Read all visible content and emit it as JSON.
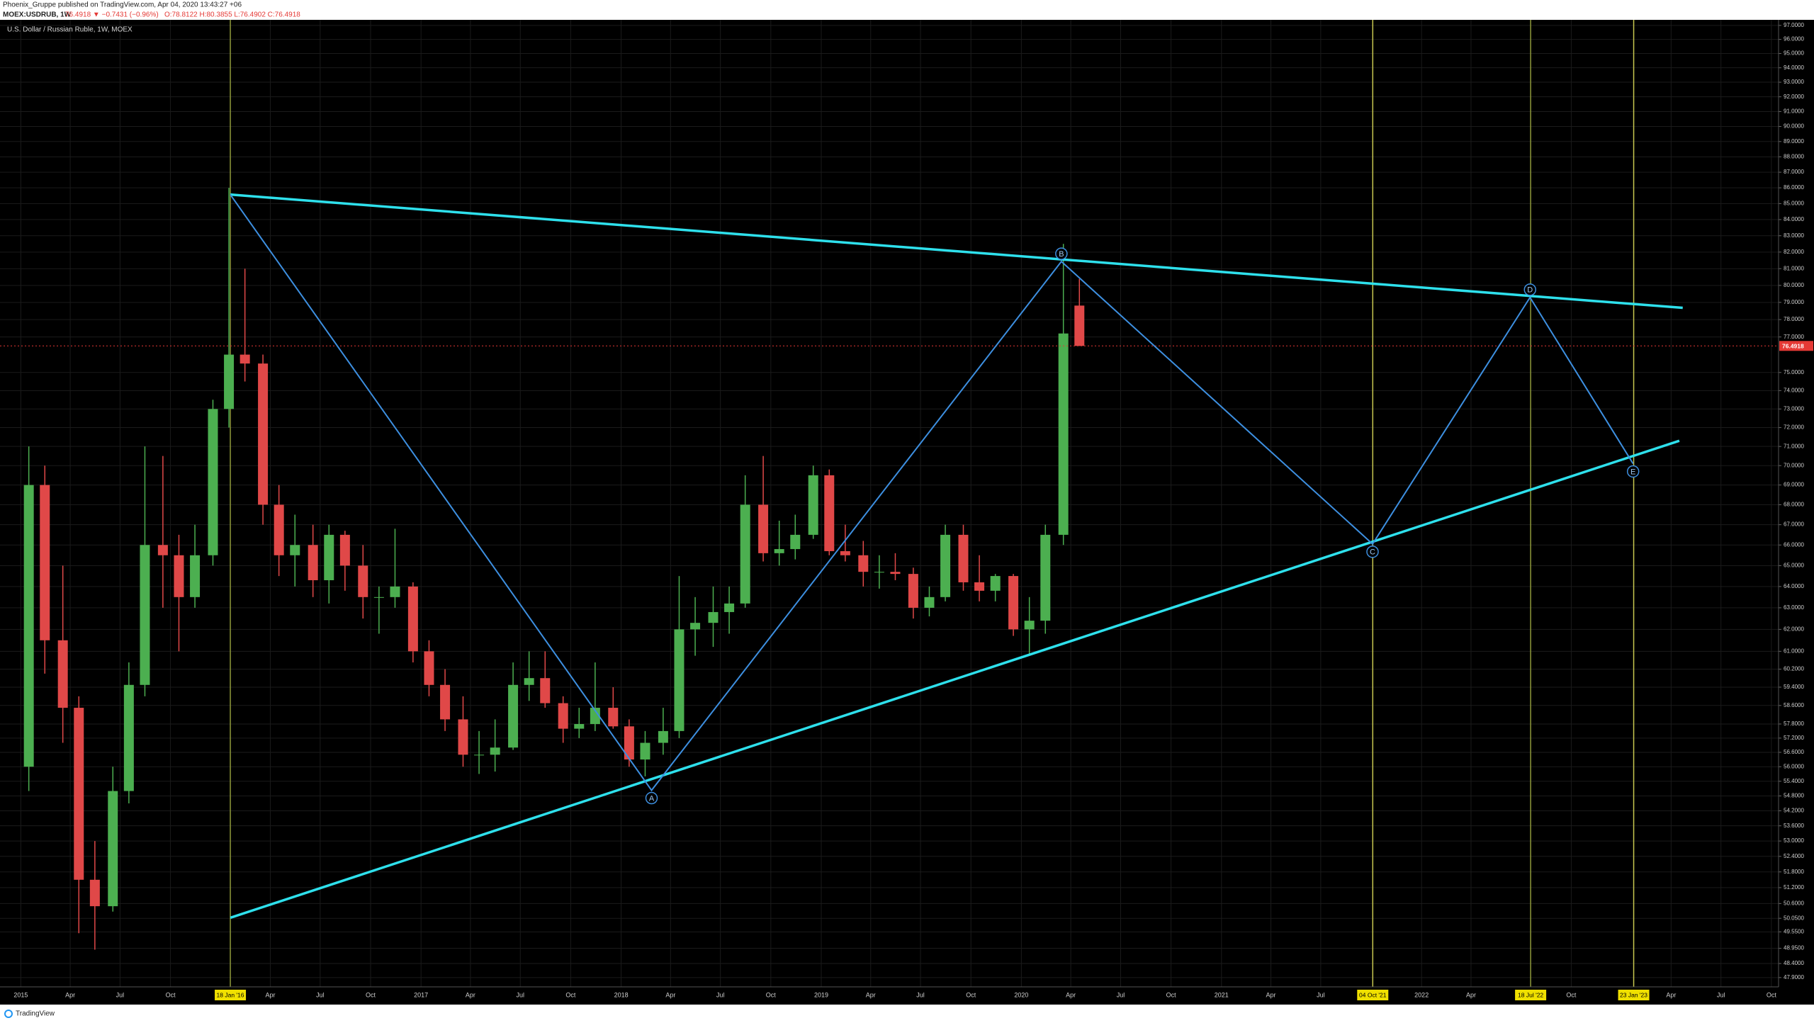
{
  "header": {
    "published": "Phoenix_Gruppe published on TradingView.com, Apr 04, 2020 13:43:27 +06",
    "symbol": "MOEX:USDRUB, 1W",
    "change": "76.4918 ▼ −0.7431 (−0.96%)",
    "ohlc": "O:78.8122 H:80.3855 L:76.4902 C:76.4918"
  },
  "footer": {
    "brand": "TradingView"
  },
  "chart_data": {
    "type": "candlestick",
    "title": "U.S. Dollar / Russian Ruble, 1W, MOEX",
    "log_scale": true,
    "grid": true,
    "up_color": "#4caf50",
    "down_color": "#e04848",
    "xlim": [
      2014.896,
      2023.784
    ],
    "ylim": [
      47.57,
      97.4
    ],
    "xticks": [
      2015,
      {
        "value": 2015.247,
        "label": "Apr"
      },
      {
        "value": 2015.496,
        "label": "Jul"
      },
      {
        "value": 2015.748,
        "label": "Oct"
      },
      {
        "value": 2016.247,
        "label": "Apr"
      },
      {
        "value": 2016.496,
        "label": "Jul"
      },
      {
        "value": 2016.748,
        "label": "Oct"
      },
      2017,
      {
        "value": 2017.247,
        "label": "Apr"
      },
      {
        "value": 2017.496,
        "label": "Jul"
      },
      {
        "value": 2017.748,
        "label": "Oct"
      },
      2018,
      {
        "value": 2018.247,
        "label": "Apr"
      },
      {
        "value": 2018.496,
        "label": "Jul"
      },
      {
        "value": 2018.748,
        "label": "Oct"
      },
      2019,
      {
        "value": 2019.247,
        "label": "Apr"
      },
      {
        "value": 2019.496,
        "label": "Jul"
      },
      {
        "value": 2019.748,
        "label": "Oct"
      },
      2020,
      {
        "value": 2020.247,
        "label": "Apr"
      },
      {
        "value": 2020.496,
        "label": "Jul"
      },
      {
        "value": 2020.748,
        "label": "Oct"
      },
      2021,
      {
        "value": 2021.247,
        "label": "Apr"
      },
      {
        "value": 2021.496,
        "label": "Jul"
      },
      2022,
      {
        "value": 2022.247,
        "label": "Apr"
      },
      {
        "value": 2022.748,
        "label": "Oct"
      },
      {
        "value": 2023.247,
        "label": "Apr"
      },
      {
        "value": 2023.496,
        "label": "Jul"
      },
      {
        "value": 2023.748,
        "label": "Oct"
      }
    ],
    "yticks": [
      {
        "value": 97,
        "label": "97.0000"
      },
      {
        "value": 96,
        "label": "96.0000"
      },
      {
        "value": 95,
        "label": "95.0000"
      },
      {
        "value": 94,
        "label": "94.0000"
      },
      {
        "value": 93,
        "label": "93.0000"
      },
      {
        "value": 92,
        "label": "92.0000"
      },
      {
        "value": 91,
        "label": "91.0000"
      },
      {
        "value": 90,
        "label": "90.0000"
      },
      {
        "value": 89,
        "label": "89.0000"
      },
      {
        "value": 88,
        "label": "88.0000"
      },
      {
        "value": 87,
        "label": "87.0000"
      },
      {
        "value": 86,
        "label": "86.0000"
      },
      {
        "value": 85,
        "label": "85.0000"
      },
      {
        "value": 84,
        "label": "84.0000"
      },
      {
        "value": 83,
        "label": "83.0000"
      },
      {
        "value": 82,
        "label": "82.0000"
      },
      {
        "value": 81,
        "label": "81.0000"
      },
      {
        "value": 80,
        "label": "80.0000"
      },
      {
        "value": 79,
        "label": "79.0000"
      },
      {
        "value": 78,
        "label": "78.0000"
      },
      {
        "value": 77,
        "label": "77.0000"
      },
      {
        "value": 75,
        "label": "75.0000"
      },
      {
        "value": 74,
        "label": "74.0000"
      },
      {
        "value": 73,
        "label": "73.0000"
      },
      {
        "value": 72,
        "label": "72.0000"
      },
      {
        "value": 71,
        "label": "71.0000"
      },
      {
        "value": 70,
        "label": "70.0000"
      },
      {
        "value": 69,
        "label": "69.0000"
      },
      {
        "value": 68,
        "label": "68.0000"
      },
      {
        "value": 67,
        "label": "67.0000"
      },
      {
        "value": 66,
        "label": "66.0000"
      },
      {
        "value": 65,
        "label": "65.0000"
      },
      {
        "value": 64,
        "label": "64.0000"
      },
      {
        "value": 63,
        "label": "63.0000"
      },
      {
        "value": 62,
        "label": "62.0000"
      },
      {
        "value": 61,
        "label": "61.0000"
      },
      {
        "value": 60.2,
        "label": "60.2000"
      },
      {
        "value": 59.4,
        "label": "59.4000"
      },
      {
        "value": 58.6,
        "label": "58.6000"
      },
      {
        "value": 57.8,
        "label": "57.8000"
      },
      {
        "value": 57.2,
        "label": "57.2000"
      },
      {
        "value": 56.6,
        "label": "56.6000"
      },
      {
        "value": 56,
        "label": "56.0000"
      },
      {
        "value": 55.4,
        "label": "55.4000"
      },
      {
        "value": 54.8,
        "label": "54.8000"
      },
      {
        "value": 54.2,
        "label": "54.2000"
      },
      {
        "value": 53.6,
        "label": "53.6000"
      },
      {
        "value": 53,
        "label": "53.0000"
      },
      {
        "value": 52.4,
        "label": "52.4000"
      },
      {
        "value": 51.8,
        "label": "51.8000"
      },
      {
        "value": 51.2,
        "label": "51.2000"
      },
      {
        "value": 50.6,
        "label": "50.6000"
      },
      {
        "value": 50.05,
        "label": "50.0500"
      },
      {
        "value": 49.55,
        "label": "49.5500"
      },
      {
        "value": 48.95,
        "label": "48.9500"
      },
      {
        "value": 48.4,
        "label": "48.4000"
      },
      {
        "value": 47.9,
        "label": "47.9000"
      }
    ],
    "candles": {
      "x": [
        2015.04,
        2015.12,
        2015.21,
        2015.29,
        2015.37,
        2015.46,
        2015.54,
        2015.62,
        2015.71,
        2015.79,
        2015.87,
        2015.96,
        2016.04,
        2016.12,
        2016.21,
        2016.29,
        2016.37,
        2016.46,
        2016.54,
        2016.62,
        2016.71,
        2016.79,
        2016.87,
        2016.96,
        2017.04,
        2017.12,
        2017.21,
        2017.29,
        2017.37,
        2017.46,
        2017.54,
        2017.62,
        2017.71,
        2017.79,
        2017.87,
        2017.96,
        2018.04,
        2018.12,
        2018.21,
        2018.29,
        2018.37,
        2018.46,
        2018.54,
        2018.62,
        2018.71,
        2018.79,
        2018.87,
        2018.96,
        2019.04,
        2019.12,
        2019.21,
        2019.29,
        2019.37,
        2019.46,
        2019.54,
        2019.62,
        2019.71,
        2019.79,
        2019.87,
        2019.96,
        2020.04,
        2020.12,
        2020.21,
        2020.29
      ],
      "open": [
        56,
        69,
        61.5,
        58.5,
        51.5,
        50.5,
        55,
        59.5,
        66,
        65.5,
        63.5,
        65.5,
        73,
        76,
        75.5,
        68,
        65.5,
        66,
        64.3,
        66.5,
        65,
        63.5,
        63.5,
        64,
        61,
        59.5,
        58,
        56.5,
        56.5,
        56.8,
        59.5,
        59.8,
        58.7,
        57.6,
        57.8,
        58.5,
        57.7,
        56.3,
        57,
        57.5,
        62,
        62.3,
        62.8,
        63.2,
        68,
        65.6,
        65.8,
        66.5,
        69.5,
        65.7,
        65.5,
        64.7,
        64.7,
        64.6,
        63,
        63.5,
        66.5,
        64.2,
        63.8,
        64.5,
        62,
        62.4,
        66.5,
        78.8122
      ],
      "high": [
        71,
        70,
        65,
        59,
        53,
        56,
        60.5,
        71,
        70.5,
        66.5,
        67,
        73.5,
        86,
        81,
        76,
        69,
        67.5,
        67,
        67,
        66.7,
        66,
        64,
        66.8,
        64.2,
        61.5,
        60.2,
        59,
        57.5,
        58,
        60.5,
        61,
        61,
        59,
        58.5,
        60.5,
        59.4,
        58,
        57.5,
        58.5,
        64.5,
        63.5,
        64,
        64,
        69.5,
        70.5,
        67.2,
        67.5,
        70,
        69.8,
        67,
        66.2,
        65.5,
        65.6,
        64.9,
        64,
        67,
        67,
        65.5,
        64.6,
        64.6,
        63.5,
        67,
        82.5,
        80.3855
      ],
      "low": [
        55,
        60,
        57,
        49.5,
        48.9,
        50.3,
        54.5,
        59,
        63,
        61,
        63,
        65,
        72,
        74.5,
        67,
        64.5,
        64,
        63.5,
        63.2,
        63.8,
        62.5,
        61.8,
        63,
        60.5,
        59,
        57.5,
        56,
        55.7,
        55.8,
        56.7,
        58.8,
        58.5,
        57,
        57.2,
        57.5,
        57.6,
        56,
        55.6,
        56.5,
        57.2,
        60.8,
        61.2,
        61.8,
        63,
        65.2,
        65,
        65.3,
        66.3,
        65.5,
        65.2,
        64,
        63.9,
        64.3,
        62.5,
        62.6,
        63.3,
        63.8,
        63.3,
        63.3,
        61.7,
        60.9,
        61.8,
        66,
        76.4902
      ],
      "close": [
        69,
        61.5,
        58.5,
        51.5,
        50.5,
        55,
        59.5,
        66,
        65.5,
        63.5,
        65.5,
        73,
        76,
        75.5,
        68,
        65.5,
        66,
        64.3,
        66.5,
        65,
        63.5,
        63.5,
        64,
        61,
        59.5,
        58,
        56.5,
        56.5,
        56.8,
        59.5,
        59.8,
        58.7,
        57.6,
        57.8,
        58.5,
        57.7,
        56.3,
        57,
        57.5,
        62,
        62.3,
        62.8,
        63.2,
        68,
        65.6,
        65.8,
        66.5,
        69.5,
        65.7,
        65.5,
        64.7,
        64.7,
        64.6,
        63,
        63.5,
        66.5,
        64.2,
        63.8,
        64.5,
        62,
        62.4,
        66.5,
        77.2,
        76.4918
      ]
    },
    "last_price": {
      "value": 76.4918,
      "label": "76.4918",
      "color": "#e53935"
    },
    "trendlines": [
      {
        "x": [
          2016.047,
          2023.305
        ],
        "y": [
          85.57,
          78.68
        ],
        "color": "#2ee0ec"
      },
      {
        "x": [
          2016.047,
          2023.288
        ],
        "y": [
          50.07,
          71.3
        ],
        "color": "#2ee0ec"
      }
    ],
    "zigzag": {
      "x": [
        2016.047,
        2018.152,
        2020.2,
        2021.755,
        2022.542,
        2023.057
      ],
      "y": [
        85.57,
        55.03,
        81.43,
        66.05,
        79.29,
        70.1
      ],
      "labels": [
        null,
        "A",
        "B",
        "C",
        "D",
        "E"
      ],
      "color": "#3d8fe0"
    },
    "vlines": [
      {
        "x": 2016.047,
        "label": "18 Jan '16",
        "color": "#8f9a3a"
      },
      {
        "x": 2021.756,
        "label": "04 Oct '21",
        "color": "#c8c850"
      },
      {
        "x": 2022.545,
        "label": "18 Jul '22",
        "color": "#8f9a3a"
      },
      {
        "x": 2023.06,
        "label": "23 Jan '23",
        "color": "#c8c850"
      }
    ]
  }
}
